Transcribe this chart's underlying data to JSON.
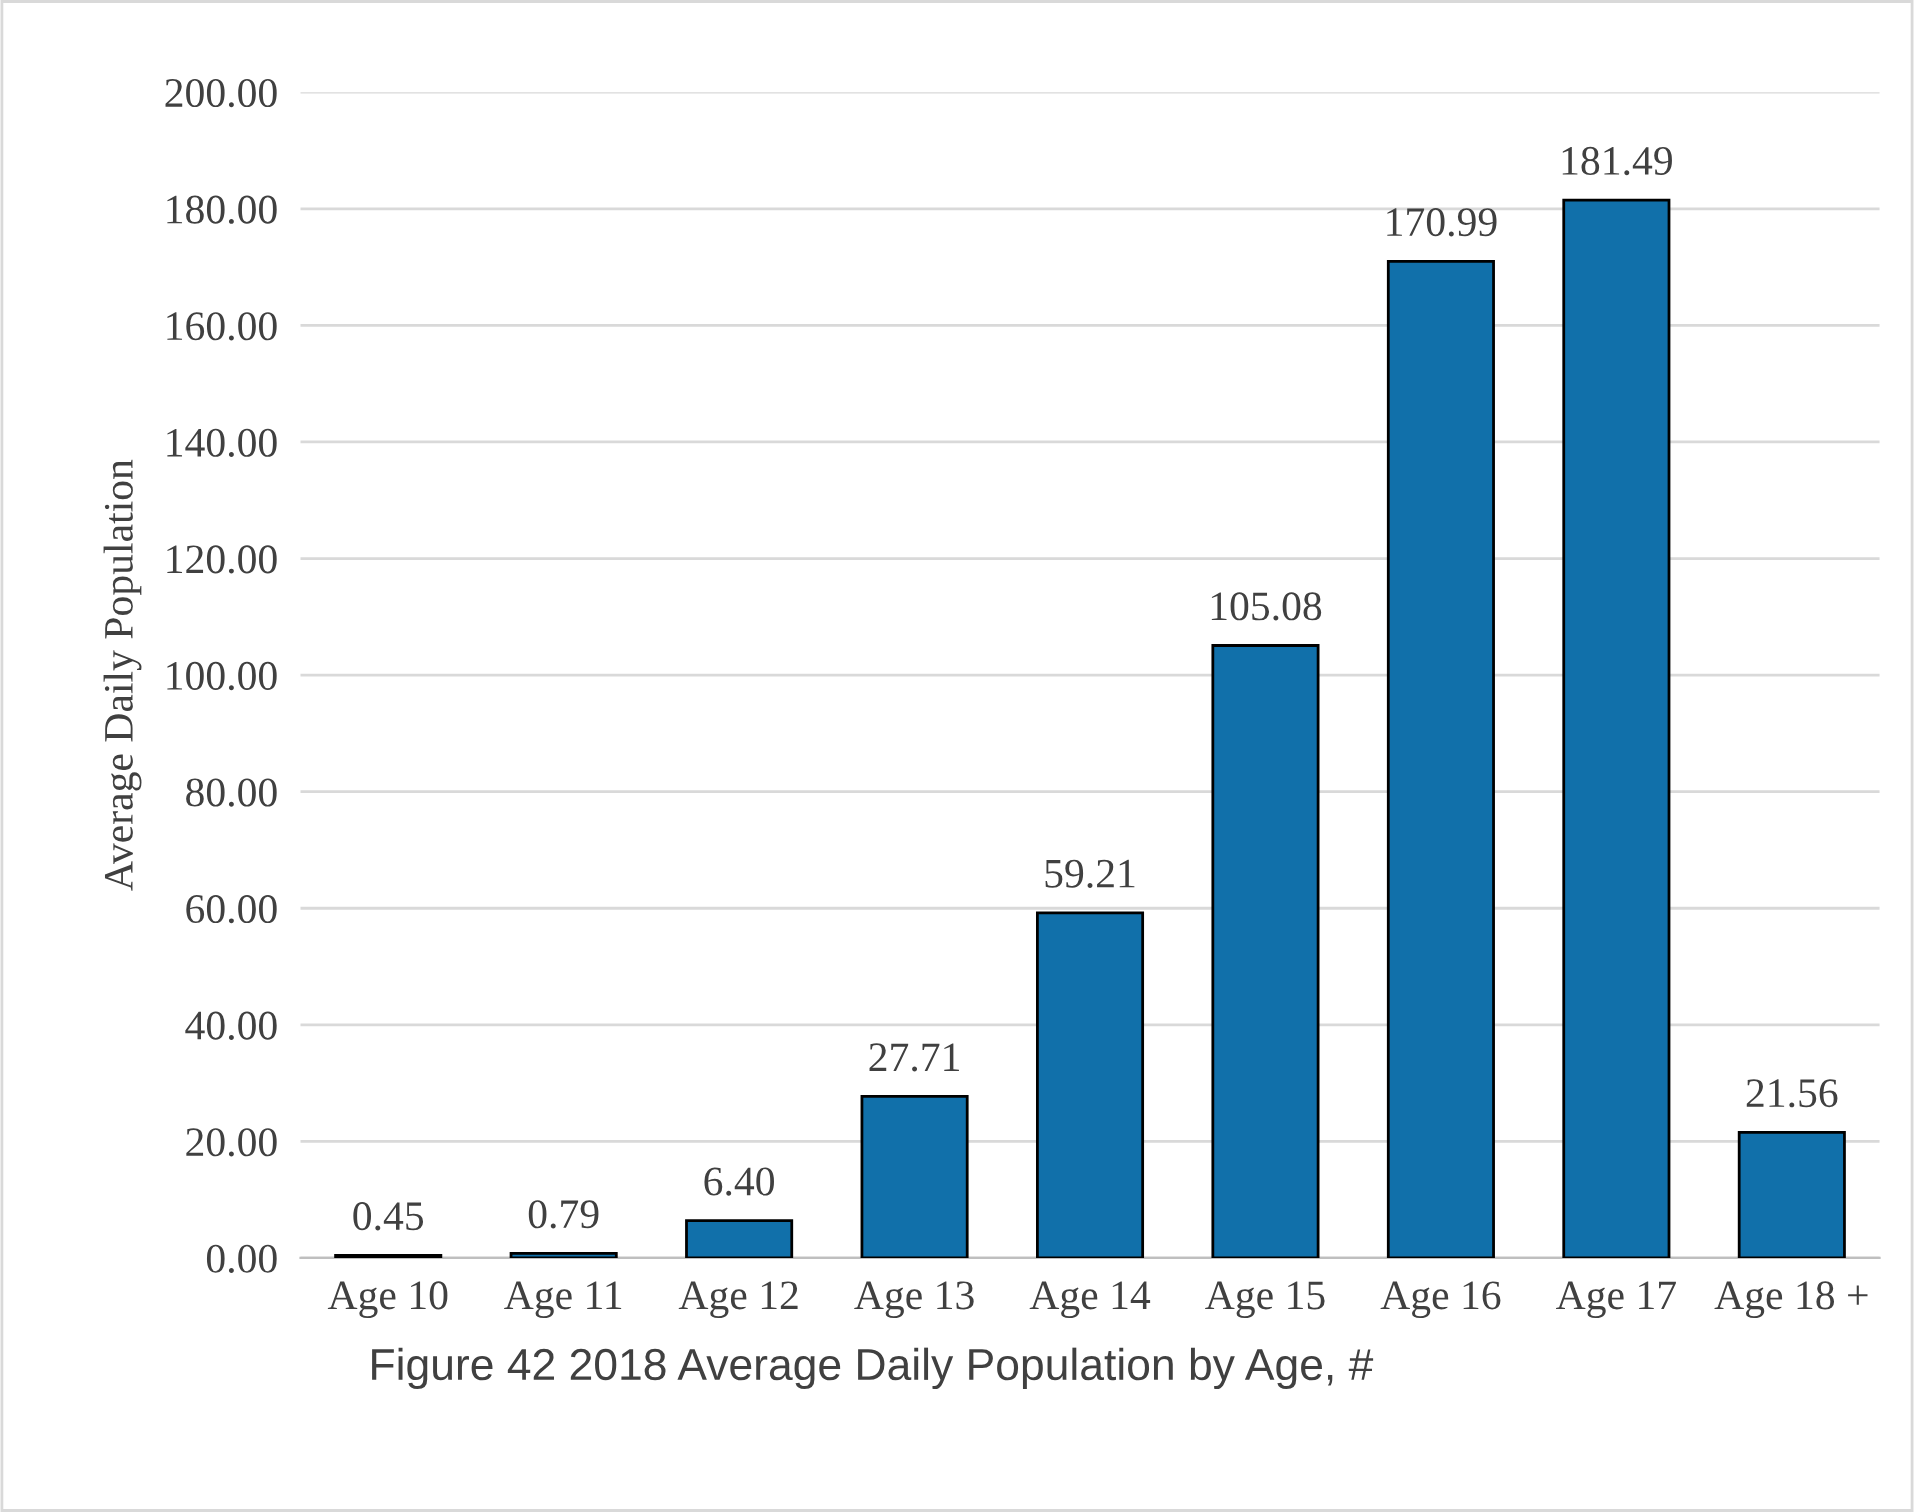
{
  "chart_data": {
    "type": "bar",
    "title": "Figure 42 2018 Average Daily Population by Age, #",
    "ylabel": "Average Daily Population",
    "categories": [
      "Age 10",
      "Age 11",
      "Age 12",
      "Age 13",
      "Age 14",
      "Age 15",
      "Age 16",
      "Age 17",
      "Age 18 +"
    ],
    "values": [
      0.45,
      0.79,
      6.4,
      27.71,
      59.21,
      105.08,
      170.99,
      181.49,
      21.56
    ],
    "value_labels": [
      "0.45",
      "0.79",
      "6.40",
      "27.71",
      "59.21",
      "105.08",
      "170.99",
      "181.49",
      "21.56"
    ],
    "color": "#1170aa",
    "ylim": [
      0,
      200
    ],
    "yticks": [
      {
        "value": 0,
        "label": "0.00"
      },
      {
        "value": 20,
        "label": "20.00"
      },
      {
        "value": 40,
        "label": "40.00"
      },
      {
        "value": 60,
        "label": "60.00"
      },
      {
        "value": 80,
        "label": "80.00"
      },
      {
        "value": 100,
        "label": "100.00"
      },
      {
        "value": 120,
        "label": "120.00"
      },
      {
        "value": 140,
        "label": "140.00"
      },
      {
        "value": 160,
        "label": "160.00"
      },
      {
        "value": 180,
        "label": "180.00"
      },
      {
        "value": 200,
        "label": "200.00"
      }
    ],
    "grid": "y"
  }
}
